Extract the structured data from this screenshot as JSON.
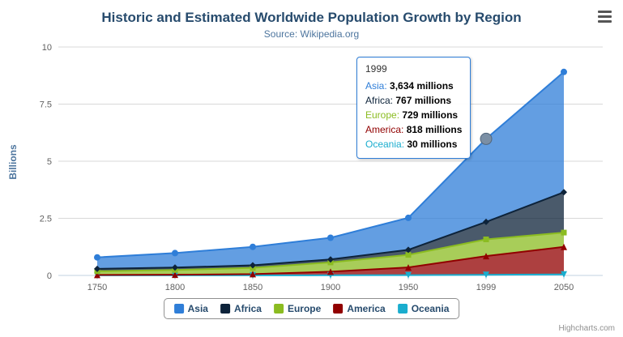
{
  "chart": {
    "title": "Historic and Estimated Worldwide Population Growth by Region",
    "subtitle": "Source: Wikipedia.org",
    "y_axis_title": "Billions",
    "credits": "Highcharts.com"
  },
  "chart_data": {
    "type": "area",
    "stacked": true,
    "title": "Historic and Estimated Worldwide Population Growth by Region",
    "subtitle": "Source: Wikipedia.org",
    "xlabel": "",
    "ylabel": "Billions",
    "values_unit": "millions",
    "unit_divisor": 1000,
    "categories": [
      "1750",
      "1800",
      "1850",
      "1900",
      "1950",
      "1999",
      "2050"
    ],
    "yticks": [
      0,
      2.5,
      5,
      7.5,
      10
    ],
    "ytick_labels": [
      "0",
      "2.5",
      "5",
      "7.5",
      "10"
    ],
    "ylim": [
      0,
      10
    ],
    "grid": "horizontal",
    "legend_position": "bottom",
    "series": [
      {
        "name": "Asia",
        "color": "#2f7ed8",
        "marker": "circle",
        "values": [
          502,
          635,
          809,
          947,
          1402,
          3634,
          5268
        ]
      },
      {
        "name": "Africa",
        "color": "#0d233a",
        "marker": "diamond",
        "values": [
          106,
          107,
          111,
          133,
          221,
          767,
          1766
        ]
      },
      {
        "name": "Europe",
        "color": "#8bbc21",
        "marker": "square",
        "values": [
          163,
          203,
          276,
          408,
          547,
          729,
          628
        ]
      },
      {
        "name": "America",
        "color": "#910000",
        "marker": "triangle",
        "values": [
          18,
          31,
          54,
          156,
          339,
          818,
          1201
        ]
      },
      {
        "name": "Oceania",
        "color": "#1aadce",
        "marker": "triangle-down",
        "values": [
          2,
          2,
          2,
          6,
          13,
          30,
          46
        ]
      }
    ]
  },
  "tooltip": {
    "header": "1999",
    "border_color": "#2f7ed8",
    "rows": [
      {
        "name": "Asia",
        "color": "#2f7ed8",
        "value": "3,634 millions"
      },
      {
        "name": "Africa",
        "color": "#0d233a",
        "value": "767 millions"
      },
      {
        "name": "Europe",
        "color": "#8bbc21",
        "value": "729 millions"
      },
      {
        "name": "America",
        "color": "#910000",
        "value": "818 millions"
      },
      {
        "name": "Oceania",
        "color": "#1aadce",
        "value": "30 millions"
      }
    ]
  },
  "hover": {
    "series": "Asia",
    "category": "1999",
    "marker_color": "#7b8fa5",
    "marker_stroke": "#51667c"
  }
}
